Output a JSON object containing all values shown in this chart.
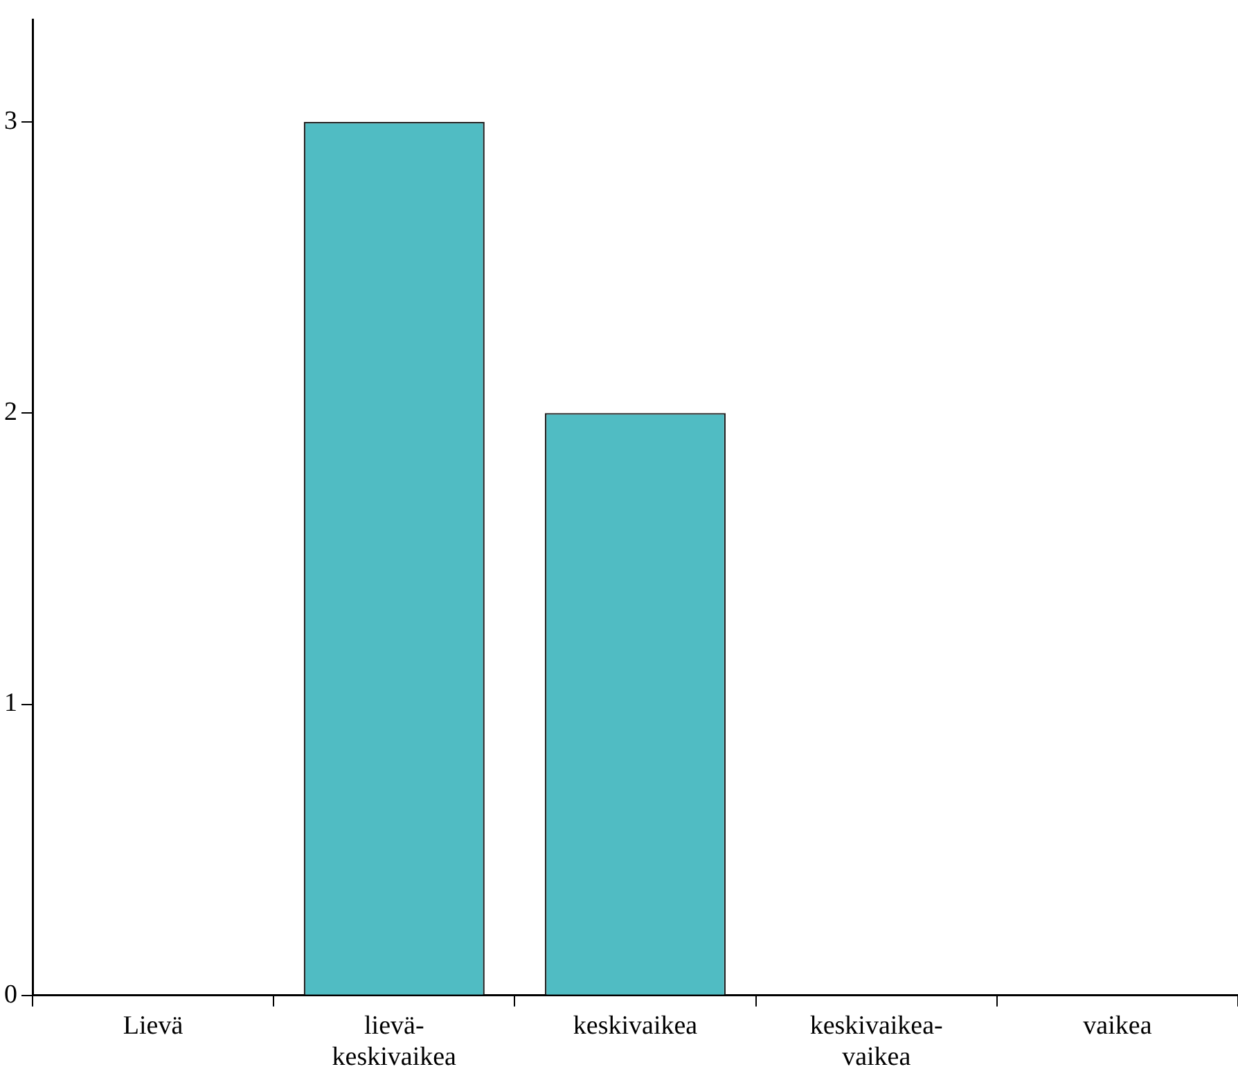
{
  "chart_data": {
    "type": "bar",
    "categories": [
      "Lievä",
      "lievä-keskivaikea",
      "keskivaikea",
      "keskivaikea-vaikea",
      "vaikea"
    ],
    "values": [
      0,
      3,
      2,
      0,
      0
    ],
    "color": "#50bcc3",
    "ylim": [
      0,
      3.35
    ],
    "yticks": [
      0,
      1,
      2,
      3
    ],
    "grid": false,
    "legend": false
  }
}
